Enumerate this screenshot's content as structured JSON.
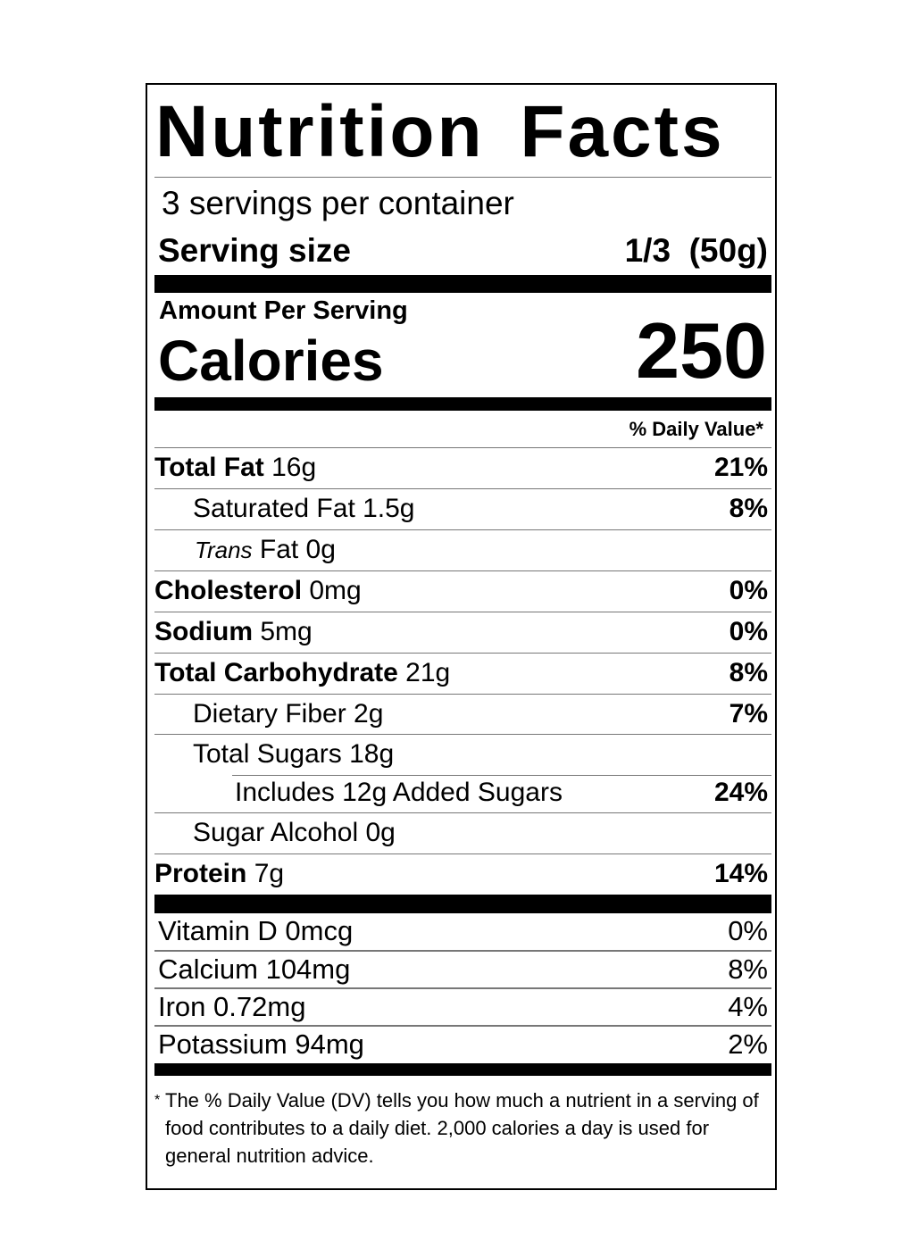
{
  "title": "Nutrition Facts",
  "servings_per_container": "3 servings per container",
  "serving_size_label": "Serving size",
  "serving_size_value": "1/3  (50g)",
  "amount_per_serving": "Amount Per Serving",
  "calories_label": "Calories",
  "calories_value": "250",
  "daily_value_header": "% Daily Value*",
  "nutrients": [
    {
      "name": "Total Fat",
      "amount": " 16g",
      "dv": "21%"
    },
    {
      "name": "Saturated Fat 1.5g",
      "amount": "",
      "dv": "8%"
    },
    {
      "name": "Trans",
      "amount": " Fat 0g",
      "dv": ""
    },
    {
      "name": "Cholesterol",
      "amount": " 0mg",
      "dv": "0%"
    },
    {
      "name": "Sodium",
      "amount": " 5mg",
      "dv": "0%"
    },
    {
      "name": "Total Carbohydrate",
      "amount": " 21g",
      "dv": "8%"
    },
    {
      "name": "Dietary Fiber 2g",
      "amount": "",
      "dv": "7%"
    },
    {
      "name": "Total Sugars 18g",
      "amount": "",
      "dv": ""
    },
    {
      "name": "Includes 12g Added Sugars",
      "amount": "",
      "dv": "24%"
    },
    {
      "name": "Sugar Alcohol 0g",
      "amount": "",
      "dv": ""
    },
    {
      "name": "Protein",
      "amount": " 7g",
      "dv": "14%"
    }
  ],
  "vitamins": [
    {
      "name": "Vitamin D 0mcg",
      "dv": "0%"
    },
    {
      "name": "Calcium 104mg",
      "dv": "8%"
    },
    {
      "name": "Iron 0.72mg",
      "dv": "4%"
    },
    {
      "name": "Potassium 94mg",
      "dv": "2%"
    }
  ],
  "footnote_star": "*",
  "footnote": "The % Daily Value (DV) tells you how much a nutrient in a serving of food contributes to a daily diet. 2,000 calories a day is used for general nutrition advice."
}
